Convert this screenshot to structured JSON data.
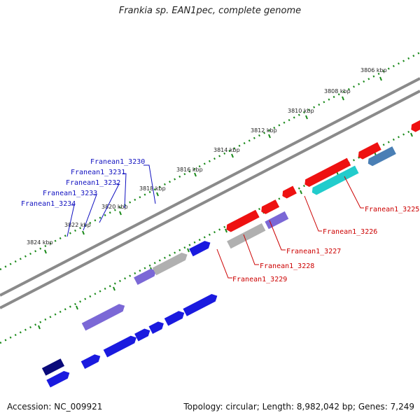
{
  "title": "Frankia sp. EAN1pec, complete genome",
  "footer": {
    "accession": "Accession: NC_009921",
    "stats": "Topology: circular; Length: 8,982,042 bp; Genes: 7,249"
  },
  "tick_labels": [
    "3806 kbp",
    "3808 kbp",
    "3810 kbp",
    "3812 kbp",
    "3814 kbp",
    "3816 kbp",
    "3818 kbp",
    "3820 kbp",
    "3822 kbp",
    "3824 kbp"
  ],
  "gene_labels_blue": [
    "Franean1_3230",
    "Franean1_3231",
    "Franean1_3232",
    "Franean1_3233",
    "Franean1_3234"
  ],
  "gene_labels_red": [
    "Franean1_3225",
    "Franean1_3226",
    "Franean1_3227",
    "Franean1_3228",
    "Franean1_3229"
  ],
  "colors": {
    "backbone": "#8a8a8a",
    "tick_dots": "#1a8a1a",
    "blue_gene": "#1a1adf",
    "navy_gene": "#0a0a7a",
    "purple_gene": "#7b68d6",
    "gray_gene": "#b0b0b0",
    "red_gene": "#ee1111",
    "cyan_gene": "#22cccc",
    "steel_gene": "#4a7fb5",
    "label_blue": "#1010c0",
    "label_red": "#cc0000"
  }
}
